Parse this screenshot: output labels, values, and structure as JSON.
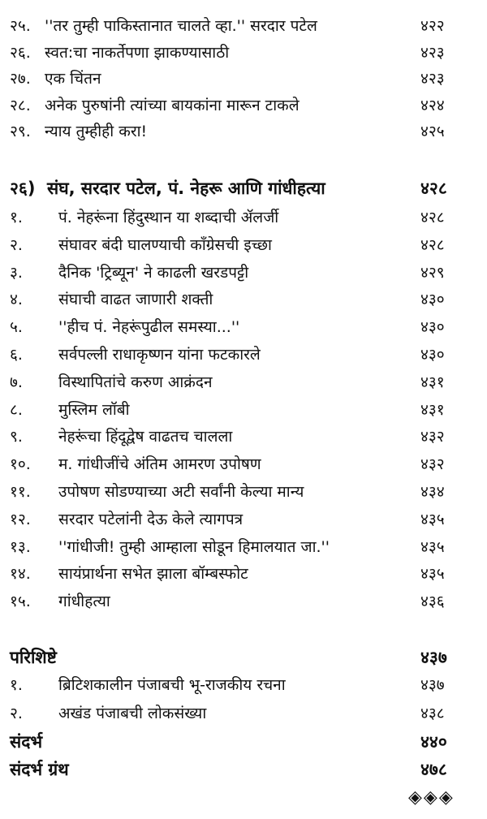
{
  "block1": [
    {
      "num": "२५.",
      "title": "''तर तुम्ही पाकिस्तानात चालते व्हा.'' सरदार पटेल",
      "page": "४२२"
    },
    {
      "num": "२६.",
      "title": "स्वत:चा नाकर्तेपणा झाकण्यासाठी",
      "page": "४२३"
    },
    {
      "num": "२७.",
      "title": "एक चिंतन",
      "page": "४२३"
    },
    {
      "num": "२८.",
      "title": "अनेक पुरुषांनी त्यांच्या बायकांना मारून टाकले",
      "page": "४२४"
    },
    {
      "num": "२९.",
      "title": "न्याय तुम्हीही करा!",
      "page": "४२५"
    }
  ],
  "chapter": {
    "num": "२६)",
    "title": "संघ, सरदार पटेल, पं. नेहरू आणि गांधीहत्या",
    "page": "४२८"
  },
  "chapter_items": [
    {
      "num": "१.",
      "title": "पं. नेहरूंना हिंदुस्थान या शब्दाची ॲलर्जी",
      "page": "४२८"
    },
    {
      "num": "२.",
      "title": "संघावर बंदी घालण्याची काँग्रेसची इच्छा",
      "page": "४२८"
    },
    {
      "num": "३.",
      "title": "दैनिक 'ट्रिब्यून' ने काढली खरडपट्टी",
      "page": "४२९"
    },
    {
      "num": "४.",
      "title": "संघाची वाढत जाणारी शक्ती",
      "page": "४३०"
    },
    {
      "num": "५.",
      "title": "''हीच पं. नेहरूंपुढील समस्या...''",
      "page": "४३०"
    },
    {
      "num": "६.",
      "title": "सर्वपल्ली राधाकृष्णन यांना फटकारले",
      "page": "४३०"
    },
    {
      "num": "७.",
      "title": "विस्थापितांचे करुण आक्रंदन",
      "page": "४३१"
    },
    {
      "num": "८.",
      "title": "मुस्लिम लॉबी",
      "page": "४३१"
    },
    {
      "num": "९.",
      "title": "नेहरूंचा हिंदूद्वेष वाढतच चालला",
      "page": "४३२"
    },
    {
      "num": "१०.",
      "title": "म. गांधीजींचे अंतिम आमरण उपोषण",
      "page": "४३२"
    },
    {
      "num": "११.",
      "title": "उपोषण सोडण्याच्या अटी सर्वांनी केल्या मान्य",
      "page": "४३४"
    },
    {
      "num": "१२.",
      "title": "सरदार पटेलांनी देऊ केले त्यागपत्र",
      "page": "४३५"
    },
    {
      "num": "१३.",
      "title": "''गांधीजी! तुम्ही आम्हाला सोडून हिमालयात जा.''",
      "page": "४३५"
    },
    {
      "num": "१४.",
      "title": "सायंप्रार्थना सभेत झाला बॉम्बस्फोट",
      "page": "४३५"
    },
    {
      "num": "१५.",
      "title": "गांधीहत्या",
      "page": "४३६"
    }
  ],
  "appendix": {
    "title": "परिशिष्टे",
    "page": "४३७"
  },
  "appendix_items": [
    {
      "num": "१.",
      "title": "ब्रिटिशकालीन पंजाबची भू-राजकीय रचना",
      "page": "४३७"
    },
    {
      "num": "२.",
      "title": "अखंड पंजाबची लोकसंख्या",
      "page": "४३८"
    }
  ],
  "references": {
    "title": "संदर्भ",
    "page": "४४०"
  },
  "bibliography": {
    "title": "संदर्भ ग्रंथ",
    "page": "४७८"
  },
  "ornament": "◈◈◈"
}
